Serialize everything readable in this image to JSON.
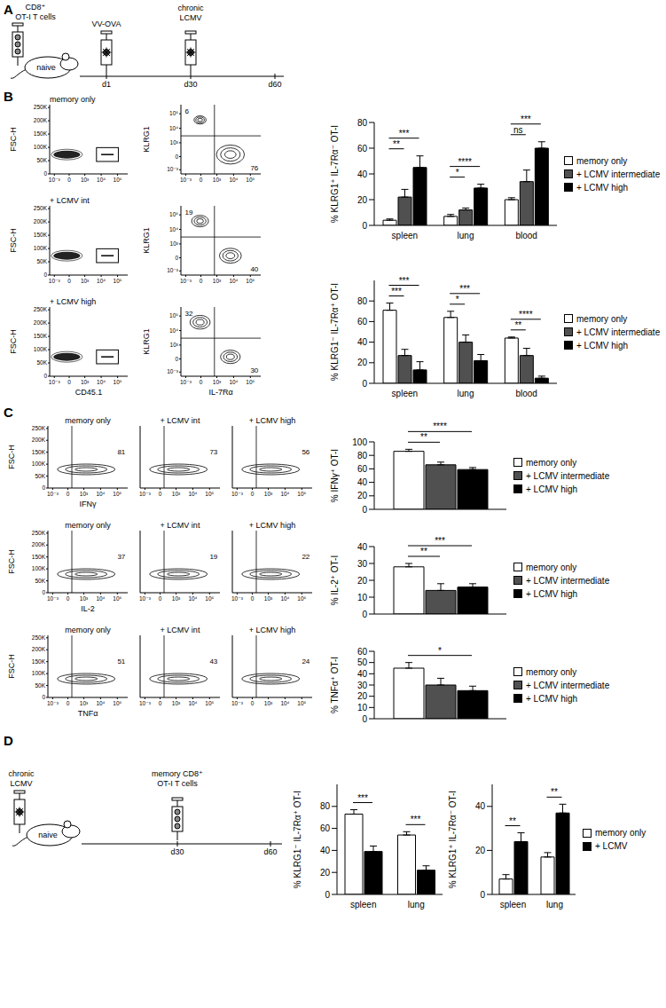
{
  "chart_data": [
    {
      "type": "bar",
      "y_label": "% KLRG1⁺ IL-7Rα⁻ OT-I",
      "categories": [
        "spleen",
        "lung",
        "blood"
      ],
      "series": [
        {
          "name": "memory only",
          "color": "#ffffff",
          "values": [
            4,
            7,
            20
          ],
          "errors": [
            1,
            1.5,
            1.5
          ]
        },
        {
          "name": "+ LCMV intermediate",
          "color": "#505050",
          "values": [
            22,
            12,
            34
          ],
          "errors": [
            6,
            1.5,
            9
          ]
        },
        {
          "name": "+ LCMV high",
          "color": "#000000",
          "values": [
            45,
            29,
            60
          ],
          "errors": [
            9,
            3,
            5
          ]
        }
      ],
      "ylim": [
        0,
        80
      ],
      "yticks": [
        0,
        20,
        40,
        60,
        80
      ],
      "legend": "right",
      "significance": [
        {
          "category": "spleen",
          "series": "+ LCMV intermediate",
          "label": "**"
        },
        {
          "category": "spleen",
          "series": "+ LCMV high",
          "label": "***"
        },
        {
          "category": "lung",
          "series": "+ LCMV intermediate",
          "label": "*"
        },
        {
          "category": "lung",
          "series": "+ LCMV high",
          "label": "****"
        },
        {
          "category": "blood",
          "series": "+ LCMV intermediate",
          "label": "ns"
        },
        {
          "category": "blood",
          "series": "+ LCMV high",
          "label": "***"
        }
      ]
    },
    {
      "type": "bar",
      "y_label": "% KLRG1⁻ IL-7Rα⁺ OT-I",
      "categories": [
        "spleen",
        "lung",
        "blood"
      ],
      "series": [
        {
          "name": "memory only",
          "color": "#ffffff",
          "values": [
            71,
            64,
            44
          ],
          "errors": [
            7,
            6,
            1
          ]
        },
        {
          "name": "+ LCMV intermediate",
          "color": "#505050",
          "values": [
            27,
            40,
            27
          ],
          "errors": [
            6,
            7,
            7
          ]
        },
        {
          "name": "+ LCMV high",
          "color": "#000000",
          "values": [
            13,
            22,
            5
          ],
          "errors": [
            8,
            6,
            2
          ]
        }
      ],
      "ylim": [
        0,
        100
      ],
      "yticks": [
        0,
        20,
        40,
        60,
        80
      ],
      "legend": "right",
      "significance": [
        {
          "category": "spleen",
          "series": "+ LCMV intermediate",
          "label": "***"
        },
        {
          "category": "spleen",
          "series": "+ LCMV high",
          "label": "***"
        },
        {
          "category": "lung",
          "series": "+ LCMV intermediate",
          "label": "*"
        },
        {
          "category": "lung",
          "series": "+ LCMV high",
          "label": "***"
        },
        {
          "category": "blood",
          "series": "+ LCMV intermediate",
          "label": "**"
        },
        {
          "category": "blood",
          "series": "+ LCMV high",
          "label": "****"
        }
      ]
    },
    {
      "type": "bar",
      "y_label": "% IFNγ⁺ OT-I",
      "categories": [
        null
      ],
      "tick_labels": "y",
      "series": [
        {
          "name": "memory only",
          "color": "#ffffff",
          "values": [
            86
          ],
          "errors": [
            3
          ]
        },
        {
          "name": "+ LCMV intermediate",
          "color": "#505050",
          "values": [
            66
          ],
          "errors": [
            4
          ]
        },
        {
          "name": "+ LCMV high",
          "color": "#000000",
          "values": [
            59
          ],
          "errors": [
            3
          ]
        }
      ],
      "ylim": [
        0,
        100
      ],
      "yticks": [
        0,
        20,
        40,
        60,
        80,
        100
      ],
      "legend": "right",
      "significance": [
        {
          "series": "+ LCMV intermediate",
          "label": "**"
        },
        {
          "series": "+ LCMV high",
          "label": "****"
        }
      ]
    },
    {
      "type": "bar",
      "y_label": "% IL-2⁺ OT-I",
      "categories": [
        null
      ],
      "tick_labels": "y",
      "series": [
        {
          "name": "memory only",
          "color": "#ffffff",
          "values": [
            28
          ],
          "errors": [
            2
          ]
        },
        {
          "name": "+ LCMV intermediate",
          "color": "#505050",
          "values": [
            14
          ],
          "errors": [
            4
          ]
        },
        {
          "name": "+ LCMV high",
          "color": "#000000",
          "values": [
            16
          ],
          "errors": [
            2
          ]
        }
      ],
      "ylim": [
        0,
        40
      ],
      "yticks": [
        0,
        10,
        20,
        30,
        40
      ],
      "legend": "right",
      "significance": [
        {
          "series": "+ LCMV intermediate",
          "label": "**"
        },
        {
          "series": "+ LCMV high",
          "label": "***"
        }
      ]
    },
    {
      "type": "bar",
      "y_label": "% TNFα⁺ OT-I",
      "categories": [
        null
      ],
      "tick_labels": "y",
      "series": [
        {
          "name": "memory only",
          "color": "#ffffff",
          "values": [
            45
          ],
          "errors": [
            5
          ]
        },
        {
          "name": "+ LCMV intermediate",
          "color": "#505050",
          "values": [
            30
          ],
          "errors": [
            6
          ]
        },
        {
          "name": "+ LCMV high",
          "color": "#000000",
          "values": [
            25
          ],
          "errors": [
            4
          ]
        }
      ],
      "ylim": [
        0,
        60
      ],
      "yticks": [
        0,
        10,
        20,
        30,
        40,
        50,
        60
      ],
      "legend": "right",
      "significance": [
        {
          "series": "+ LCMV high",
          "label": "*"
        }
      ]
    },
    {
      "type": "bar",
      "y_label": "% KLRG1⁻ IL-7Rα⁺ OT-I",
      "categories": [
        "spleen",
        "lung"
      ],
      "series": [
        {
          "name": "memory only",
          "color": "#ffffff",
          "values": [
            73,
            54
          ],
          "errors": [
            4,
            3
          ]
        },
        {
          "name": "+ LCMV",
          "color": "#000000",
          "values": [
            39,
            22
          ],
          "errors": [
            5,
            4
          ]
        }
      ],
      "ylim": [
        0,
        100
      ],
      "yticks": [
        0,
        20,
        40,
        60,
        80
      ],
      "significance": [
        {
          "category": "spleen",
          "series": "+ LCMV",
          "label": "***"
        },
        {
          "category": "lung",
          "series": "+ LCMV",
          "label": "***"
        }
      ]
    },
    {
      "type": "bar",
      "y_label": "% KLRG1⁺ IL-7Rα⁻ OT-I",
      "categories": [
        "spleen",
        "lung"
      ],
      "series": [
        {
          "name": "memory only",
          "color": "#ffffff",
          "values": [
            7,
            17
          ],
          "errors": [
            2,
            2
          ]
        },
        {
          "name": "+ LCMV",
          "color": "#000000",
          "values": [
            24,
            37
          ],
          "errors": [
            4,
            4
          ]
        }
      ],
      "ylim": [
        0,
        50
      ],
      "yticks": [
        0,
        20,
        40
      ],
      "legend": "right",
      "significance": [
        {
          "category": "spleen",
          "series": "+ LCMV",
          "label": "**"
        },
        {
          "category": "lung",
          "series": "+ LCMV",
          "label": "**"
        }
      ]
    }
  ],
  "figure": {
    "panel_labels": [
      "A",
      "B",
      "C",
      "D"
    ],
    "schematic_A": {
      "cells": [
        "CD8⁺",
        "OT-I T cells"
      ],
      "mouse": "naive",
      "vaccine": "VV-OVA",
      "virus": [
        "chronic",
        "LCMV"
      ],
      "days": [
        "d1",
        "d30",
        "d60"
      ]
    },
    "schematic_D": {
      "virus": [
        "chronic",
        "LCMV"
      ],
      "mouse": "naive",
      "cells": [
        "memory CD8⁺",
        "OT-I T cells"
      ],
      "days": [
        "d30",
        "d60"
      ]
    },
    "flow": {
      "fsc_ticks": [
        "0",
        "50K",
        "100K",
        "150K",
        "200K",
        "250K"
      ],
      "log_ticks": [
        "10⁻³",
        "0",
        "10³",
        "10⁴",
        "10⁵"
      ],
      "fsc_label": "FSC-H",
      "B": {
        "titles": [
          "memory only",
          "+ LCMV int",
          "+ LCMV high"
        ],
        "gate_label": "CD45.1",
        "x_label": "IL-7Rα",
        "y_label": "KLRG1",
        "quadrants": [
          [
            6,
            76
          ],
          [
            19,
            40
          ],
          [
            32,
            30
          ]
        ]
      },
      "C": {
        "titles": [
          "memory only",
          "+ LCMV int",
          "+ LCMV high"
        ],
        "rows": [
          {
            "label": "IFNγ",
            "values": [
              81,
              73,
              56
            ]
          },
          {
            "label": "IL-2",
            "values": [
              37,
              19,
              22
            ]
          },
          {
            "label": "TNFα",
            "values": [
              51,
              43,
              24
            ]
          }
        ]
      }
    }
  }
}
